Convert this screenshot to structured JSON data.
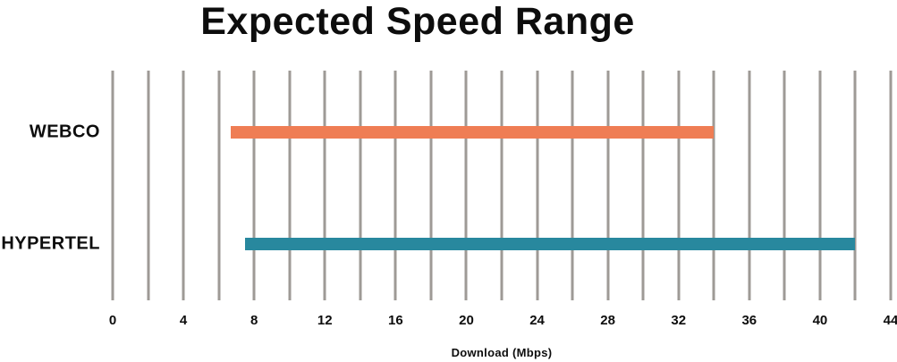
{
  "chart_data": {
    "type": "bar",
    "subtype": "horizontal-range-bars",
    "title": "Expected Speed Range",
    "categories": [
      "WEBCO",
      "HYPERTEL"
    ],
    "series": [
      {
        "name": "WEBCO",
        "range_start": 6.7,
        "range_end": 34,
        "color": "#ef7d54"
      },
      {
        "name": "HYPERTEL",
        "range_start": 7.5,
        "range_end": 42,
        "color": "#28889e"
      }
    ],
    "xlabel": "Download (Mbps)",
    "xlim": [
      0,
      44
    ],
    "x_ticks": [
      0,
      4,
      8,
      12,
      16,
      20,
      24,
      28,
      32,
      36,
      40,
      44
    ],
    "gridline_step": 2,
    "grid": "vertical-only",
    "legend_position": "none"
  },
  "colors": {
    "background": "#ffffff",
    "gridline": "#9e9a96",
    "text": "#0d0d0d",
    "webco_bar": "#ef7d54",
    "hypertel_bar": "#28889e"
  }
}
